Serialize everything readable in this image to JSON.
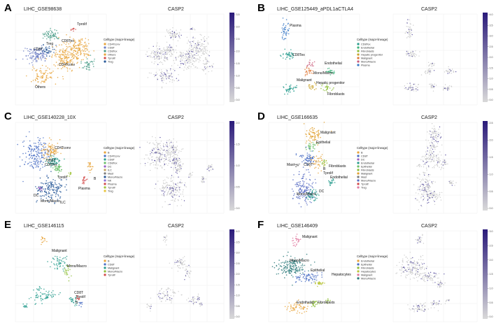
{
  "figure": {
    "caption_letters": [
      "A",
      "B",
      "C",
      "D",
      "E",
      "F"
    ]
  },
  "chart_data": [
    {
      "panel": "A",
      "type": "scatter",
      "dataset": "LIHC_GSE98638",
      "legend_title": "Celltype (major-lineage)",
      "celltypes": [
        {
          "name": "CD4Tconv",
          "color": "#e8a33a"
        },
        {
          "name": "CD8T",
          "color": "#6e7fc4"
        },
        {
          "name": "CD8Tex",
          "color": "#4c9f8a"
        },
        {
          "name": "Others",
          "color": "#e8a33a"
        },
        {
          "name": "Tprolif",
          "color": "#d24a4a"
        },
        {
          "name": "Treg",
          "color": "#2a5b9a"
        }
      ],
      "cluster_labels": [
        "Tprolif",
        "CD8Tex",
        "CD8T",
        "Treg",
        "CD4Tconv",
        "Others"
      ],
      "gene": "CASP2",
      "colorbar_ticks": [
        "0.0",
        "0.5",
        "1.0",
        "1.5",
        "2.0",
        "2.5",
        "3.0",
        "3.5"
      ]
    },
    {
      "panel": "B",
      "type": "scatter",
      "dataset": "LIHC_GSE125449_aPDL1aCTLA4",
      "legend_title": "Celltype (major-lineage)",
      "celltypes": [
        {
          "name": "CD8Tex",
          "color": "#2a9d8f"
        },
        {
          "name": "Endothelial",
          "color": "#3bb37a"
        },
        {
          "name": "Fibroblasts",
          "color": "#8fbf3a"
        },
        {
          "name": "Hepatic progenitor",
          "color": "#c9a227"
        },
        {
          "name": "Malignant",
          "color": "#e07a3a"
        },
        {
          "name": "Mono/Macro",
          "color": "#c85a7a"
        },
        {
          "name": "Plasma",
          "color": "#3a7ac8"
        }
      ],
      "cluster_labels": [
        "Plasma",
        "CD8Tex",
        "Endothelial",
        "Mono/Macro",
        "Malignant",
        "Hepatic progenitor",
        "Fibroblasts"
      ],
      "gene": "CASP2",
      "colorbar_ticks": [
        "0.0",
        "0.5",
        "1.0",
        "1.5",
        "2.0",
        "2.5",
        "3.0",
        "3.5",
        "4.0"
      ]
    },
    {
      "panel": "C",
      "type": "scatter",
      "dataset": "LIHC_GSE140228_10X",
      "legend_title": "Celltype (major-lineage)",
      "celltypes": [
        {
          "name": "B",
          "color": "#e8a33a"
        },
        {
          "name": "CD4Tconv",
          "color": "#4a6fc4"
        },
        {
          "name": "CD8T",
          "color": "#2a9d8f"
        },
        {
          "name": "CD8Tex",
          "color": "#6abf69"
        },
        {
          "name": "DC",
          "color": "#9a5fc4"
        },
        {
          "name": "ILC",
          "color": "#c4a25f"
        },
        {
          "name": "Mast",
          "color": "#7a7a7a"
        },
        {
          "name": "Mono/Macro",
          "color": "#2a5b9a"
        },
        {
          "name": "NK",
          "color": "#8f6fd4"
        },
        {
          "name": "Plasma",
          "color": "#d24a4a"
        },
        {
          "name": "Tprolif",
          "color": "#a0c43a"
        },
        {
          "name": "Treg",
          "color": "#e8c43a"
        }
      ],
      "cluster_labels": [
        "CD4Tconv",
        "CD8T",
        "CD8Tex",
        "Tprolif",
        "B",
        "Plasma",
        "DC",
        "Mono/Macro",
        "ILC"
      ],
      "gene": "CASP2",
      "colorbar_ticks": [
        "0.0",
        "0.5",
        "1.0",
        "1.5",
        "2.0"
      ]
    },
    {
      "panel": "D",
      "type": "scatter",
      "dataset": "LIHC_GSE166635",
      "legend_title": "Celltype (major-lineage)",
      "celltypes": [
        {
          "name": "B",
          "color": "#e8a33a"
        },
        {
          "name": "CD8T",
          "color": "#4a6fc4"
        },
        {
          "name": "DC",
          "color": "#9a5fc4"
        },
        {
          "name": "Endothelial",
          "color": "#2a9d8f"
        },
        {
          "name": "Epithelial",
          "color": "#6abf69"
        },
        {
          "name": "Fibroblasts",
          "color": "#8fbf3a"
        },
        {
          "name": "Malignant",
          "color": "#e0a030"
        },
        {
          "name": "Mast",
          "color": "#7a7a7a"
        },
        {
          "name": "Mono/Macro",
          "color": "#5a6fc4"
        },
        {
          "name": "Tprolif",
          "color": "#d24a4a"
        },
        {
          "name": "Treg",
          "color": "#e07aa0"
        }
      ],
      "cluster_labels": [
        "Malignant",
        "Epithelial",
        "Mast",
        "CD8T",
        "Fibroblasts",
        "B",
        "Tprolif",
        "Endothelial",
        "Mono/Macro",
        "DC"
      ],
      "gene": "CASP2",
      "colorbar_ticks": [
        "0.0",
        "0.5",
        "1.0",
        "1.5",
        "2.0",
        "2.5"
      ]
    },
    {
      "panel": "E",
      "type": "scatter",
      "dataset": "LIHC_GSE146115",
      "legend_title": "Celltype (major-lineage)",
      "celltypes": [
        {
          "name": "B",
          "color": "#e8a33a"
        },
        {
          "name": "CD8T",
          "color": "#4a6fc4"
        },
        {
          "name": "Malignant",
          "color": "#2a9d8f"
        },
        {
          "name": "Mono/Macro",
          "color": "#8fbf3a"
        },
        {
          "name": "Tprolif",
          "color": "#d24a4a"
        }
      ],
      "cluster_labels": [
        "Malignant",
        "Mono/Macro",
        "CD8T",
        "Tprolif",
        "B"
      ],
      "gene": "CASP2",
      "colorbar_ticks": [
        "0.0",
        "0.5",
        "1.0",
        "1.5",
        "2.0",
        "2.5",
        "3.0",
        "3.5",
        "4.0"
      ]
    },
    {
      "panel": "F",
      "type": "scatter",
      "dataset": "LIHC_GSE146409",
      "legend_title": "Celltype (major-lineage)",
      "celltypes": [
        {
          "name": "Endothelial",
          "color": "#e8a33a"
        },
        {
          "name": "Epithelial",
          "color": "#4a6fc4"
        },
        {
          "name": "Fibroblasts",
          "color": "#8fbf3a"
        },
        {
          "name": "Hepatocytes",
          "color": "#b8c43a"
        },
        {
          "name": "Malignant",
          "color": "#e07aa0"
        },
        {
          "name": "Mono/Macro",
          "color": "#2a7a7a"
        }
      ],
      "cluster_labels": [
        "Malignant",
        "Mono/Macro",
        "Epithelial",
        "Hepatocytes",
        "Endothelial",
        "Fibroblasts"
      ],
      "gene": "CASP2",
      "colorbar_ticks": [
        "0.0",
        "0.5",
        "1.0",
        "1.5",
        "2.0",
        "2.5",
        "3.0"
      ]
    }
  ]
}
